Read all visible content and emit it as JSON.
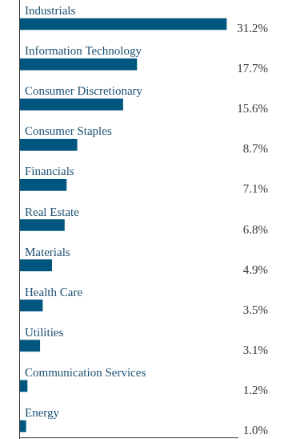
{
  "chart_data": {
    "type": "bar",
    "orientation": "horizontal",
    "categories": [
      "Industrials",
      "Information Technology",
      "Consumer Discretionary",
      "Consumer Staples",
      "Financials",
      "Real Estate",
      "Materials",
      "Health Care",
      "Utilities",
      "Communication Services",
      "Energy"
    ],
    "values": [
      31.2,
      17.7,
      15.6,
      8.7,
      7.1,
      6.8,
      4.9,
      3.5,
      3.1,
      1.2,
      1.0
    ],
    "value_labels": [
      "31.2%",
      "17.7%",
      "15.6%",
      "8.7%",
      "7.1%",
      "6.8%",
      "4.9%",
      "3.5%",
      "3.1%",
      "1.2%",
      "1.0%"
    ],
    "color": "#00567e",
    "xlim": [
      0,
      33
    ],
    "grid": false,
    "data_labels": true,
    "tick_labels": false
  }
}
